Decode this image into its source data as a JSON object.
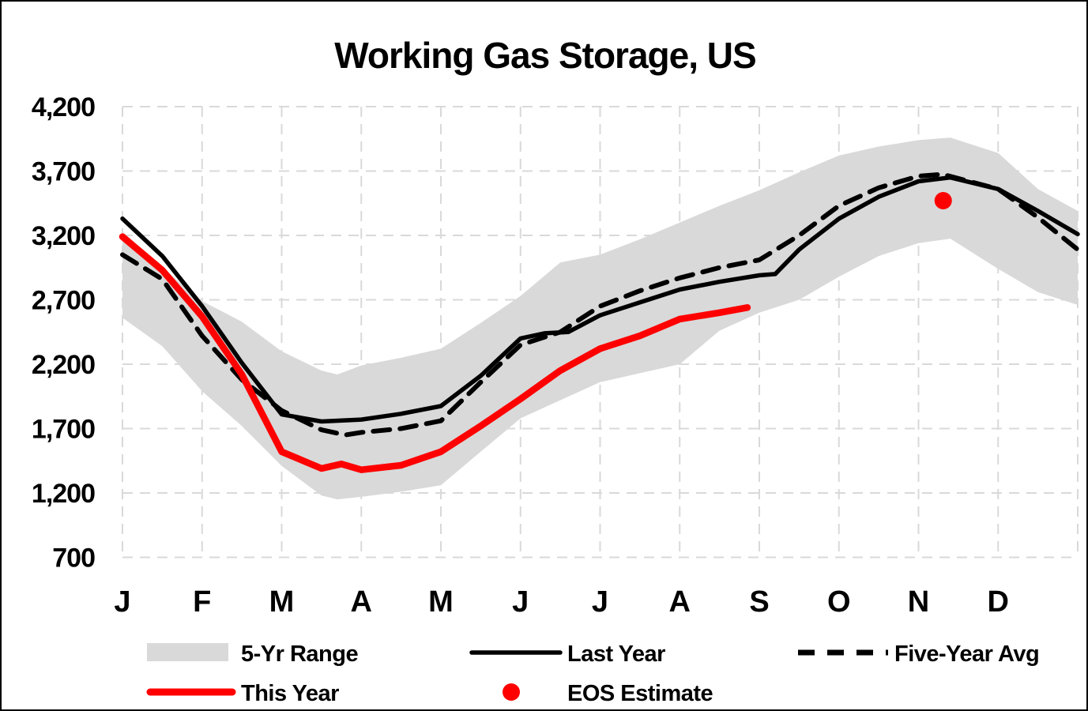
{
  "frame": {
    "background_color": "#FFFFFF",
    "border_color": "#000000"
  },
  "chart_data": {
    "type": "line",
    "title": "Working Gas Storage, US",
    "grid": {
      "visible": true,
      "style": "dashed",
      "color": "#D9D9D9"
    },
    "y_axis": {
      "min": 700,
      "max": 4200,
      "tick_values": [
        4200,
        3700,
        3200,
        2700,
        2200,
        1700,
        1200,
        700
      ],
      "tick_labels": [
        "4,200",
        "3,700",
        "3,200",
        "2,700",
        "2,200",
        "1,700",
        "1,200",
        "700"
      ]
    },
    "x_axis": {
      "unit": "month",
      "range": [
        0,
        12
      ],
      "tick_labels": [
        "J",
        "F",
        "M",
        "A",
        "M",
        "J",
        "J",
        "A",
        "S",
        "O",
        "N",
        "D"
      ]
    },
    "series": [
      {
        "name": "5-Yr Range",
        "type": "band",
        "color": "#D9D9D9",
        "x": [
          0,
          0.5,
          1,
          1.5,
          2,
          2.5,
          2.7,
          3,
          3.5,
          4,
          4.5,
          5,
          5.5,
          6,
          6.5,
          7,
          7.5,
          8,
          8.5,
          9,
          9.5,
          10,
          10.4,
          11,
          11.5,
          12
        ],
        "top": [
          3230,
          2950,
          2690,
          2530,
          2300,
          2150,
          2120,
          2190,
          2250,
          2320,
          2520,
          2730,
          2990,
          3050,
          3170,
          3300,
          3430,
          3550,
          3690,
          3820,
          3890,
          3940,
          3960,
          3840,
          3560,
          3390
        ],
        "bottom": [
          2560,
          2340,
          1990,
          1720,
          1410,
          1180,
          1150,
          1170,
          1210,
          1260,
          1520,
          1780,
          1920,
          2060,
          2130,
          2200,
          2460,
          2600,
          2700,
          2880,
          3040,
          3140,
          3175,
          2940,
          2760,
          2660
        ]
      },
      {
        "name": "Last Year",
        "type": "line",
        "color": "#000000",
        "dash": null,
        "stroke_width": 5.5,
        "x": [
          0,
          0.5,
          1,
          1.5,
          2,
          2.5,
          3,
          3.5,
          4,
          4.5,
          5,
          5.3,
          5.6,
          6,
          6.5,
          7,
          7.5,
          8,
          8.2,
          8.5,
          9,
          9.5,
          10,
          10.4,
          11,
          11.5,
          12
        ],
        "y": [
          3330,
          3040,
          2650,
          2210,
          1810,
          1755,
          1770,
          1815,
          1875,
          2110,
          2400,
          2440,
          2450,
          2580,
          2680,
          2780,
          2840,
          2890,
          2900,
          3090,
          3330,
          3500,
          3620,
          3650,
          3560,
          3390,
          3210
        ]
      },
      {
        "name": "Five-Year Avg",
        "type": "line",
        "color": "#000000",
        "dash": [
          21,
          13
        ],
        "stroke_width": 6,
        "x": [
          0,
          0.5,
          1,
          1.5,
          2,
          2.5,
          2.8,
          3,
          3.5,
          4,
          4.5,
          5,
          5.5,
          6,
          6.5,
          7,
          7.5,
          8,
          8.5,
          9,
          9.5,
          10,
          10.3,
          11,
          11.5,
          12
        ],
        "y": [
          3050,
          2860,
          2420,
          2080,
          1840,
          1690,
          1650,
          1670,
          1700,
          1760,
          2060,
          2350,
          2450,
          2650,
          2770,
          2870,
          2950,
          3010,
          3200,
          3430,
          3570,
          3660,
          3675,
          3560,
          3340,
          3090
        ]
      },
      {
        "name": "This Year",
        "type": "line",
        "color": "#FF0000",
        "dash": null,
        "stroke_width": 8.5,
        "x": [
          0,
          0.5,
          1,
          1.5,
          2,
          2.5,
          2.75,
          3,
          3.5,
          4,
          4.5,
          5,
          5.5,
          6,
          6.5,
          7,
          7.5,
          7.85
        ],
        "y": [
          3190,
          2930,
          2570,
          2120,
          1520,
          1390,
          1425,
          1380,
          1415,
          1520,
          1720,
          1930,
          2150,
          2320,
          2420,
          2550,
          2600,
          2640
        ]
      },
      {
        "name": "EOS Estimate",
        "type": "point",
        "color": "#FF0000",
        "radius": 11,
        "x": 10.31,
        "y": 3470
      }
    ],
    "legend": {
      "position": "bottom",
      "rows": 2,
      "items": [
        {
          "label": "5-Yr Range",
          "marker": "band-swatch",
          "color": "#D9D9D9"
        },
        {
          "label": "Last Year",
          "marker": "solid-line",
          "color": "#000000"
        },
        {
          "label": "Five-Year Avg",
          "marker": "dashed-line",
          "color": "#000000"
        },
        {
          "label": "This Year",
          "marker": "thick-line",
          "color": "#FF0000"
        },
        {
          "label": "EOS Estimate",
          "marker": "dot",
          "color": "#FF0000"
        }
      ]
    }
  }
}
